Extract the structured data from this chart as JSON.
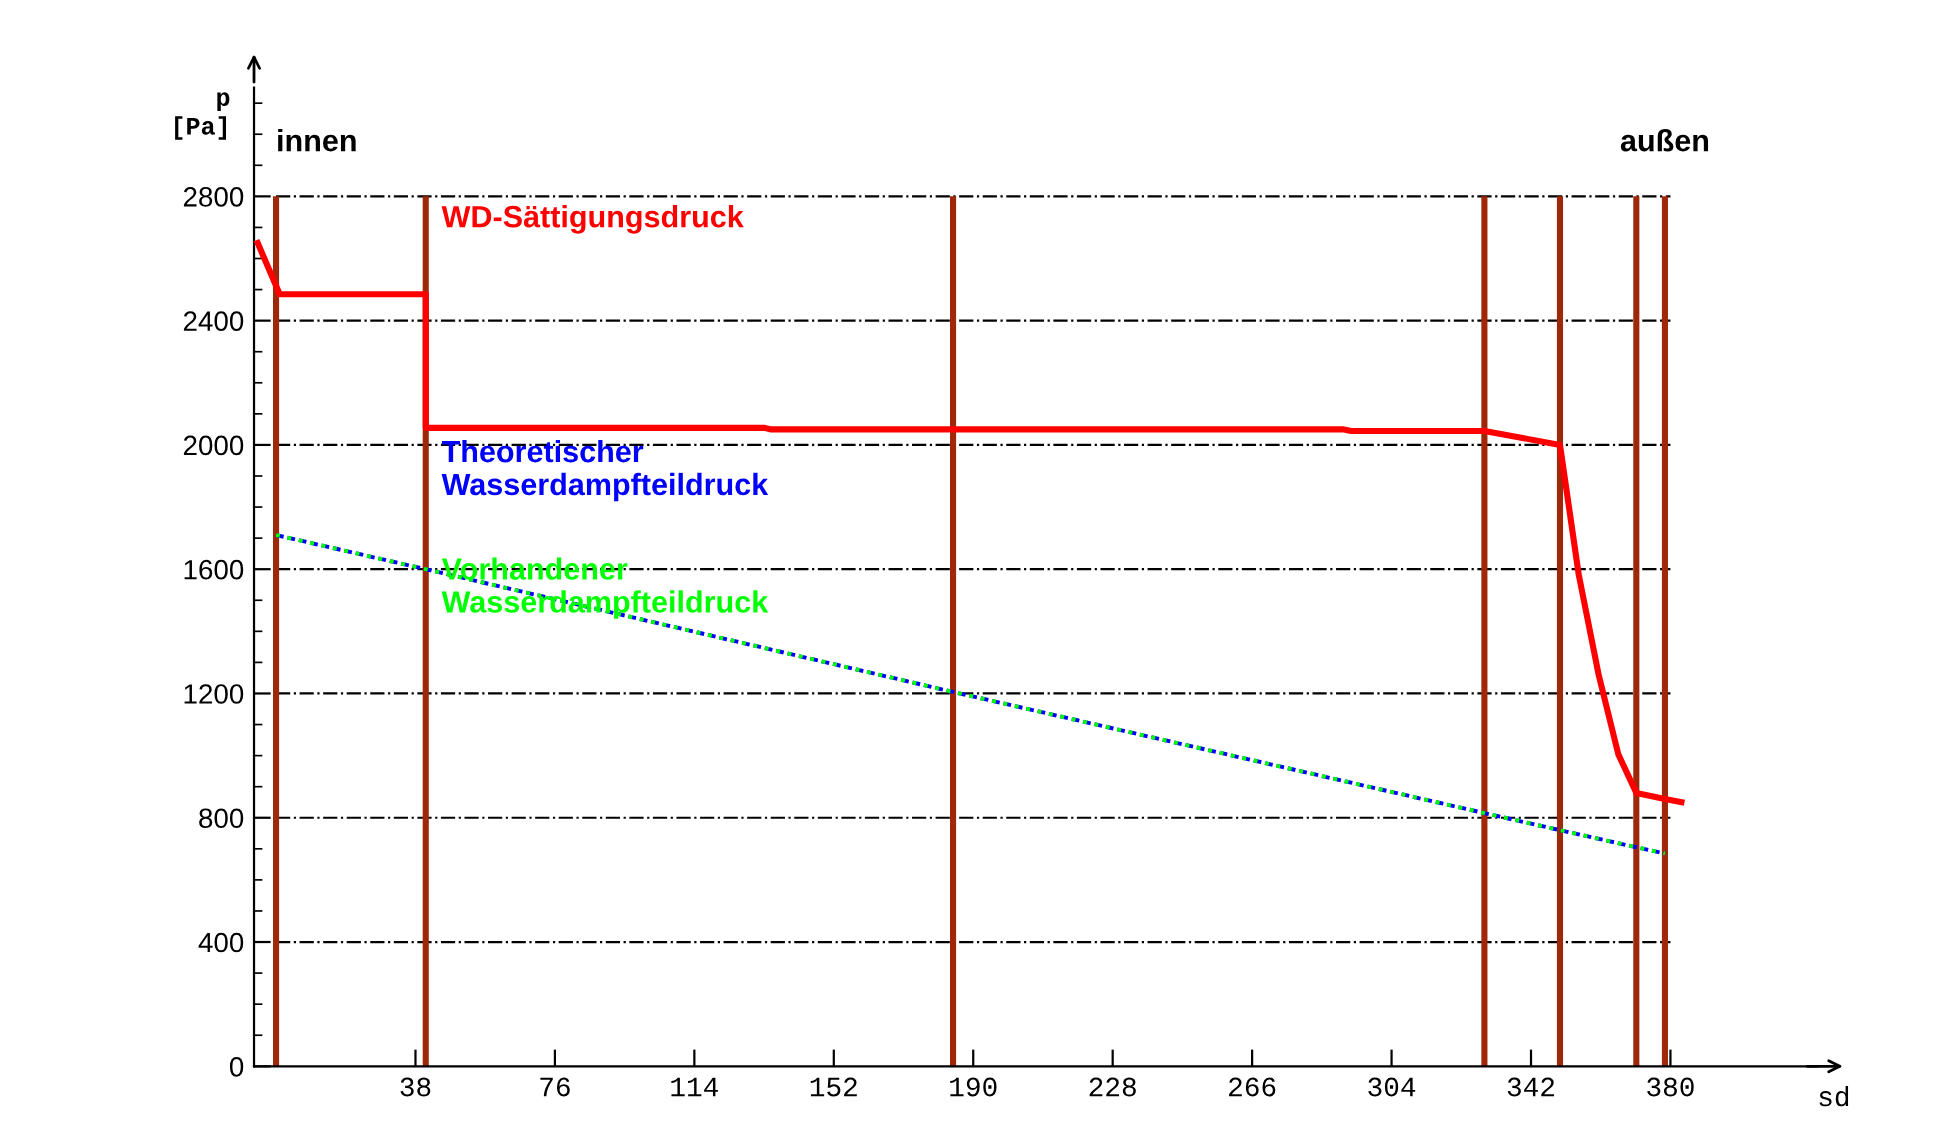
{
  "chart_data": {
    "type": "line",
    "xlabel": "sd",
    "ylabel": "p\n[Pa]",
    "annotations": [
      {
        "text": "innen",
        "x": 0,
        "y": 2800
      },
      {
        "text": "außen",
        "x": 378.5,
        "y": 2800
      }
    ],
    "xlim": [
      -6,
      420
    ],
    "ylim": [
      0,
      3150
    ],
    "xticks": [
      38,
      76,
      114,
      152,
      190,
      228,
      266,
      304,
      342,
      380
    ],
    "yticks": [
      0,
      400,
      800,
      1200,
      1600,
      2000,
      2400,
      2800
    ],
    "grid": "y",
    "series": [
      {
        "name": "WD-Sättigungsdruck",
        "color": "#ff0000",
        "line_style": "solid",
        "x": [
          -5,
          1,
          40.8,
          40.8,
          133,
          135,
          291,
          293,
          329.3,
          349.9,
          355,
          360.4,
          365.8,
          370.7,
          378.5,
          383
        ],
        "values": [
          2650,
          2485,
          2485,
          2055,
          2055,
          2050,
          2050,
          2045,
          2045,
          2000,
          1583,
          1262,
          1004,
          880,
          860,
          850
        ]
      },
      {
        "name": "Theoretischer\nWasserdampfteildruck",
        "color": "#0000ff",
        "line_style": "dashed",
        "x": [
          0,
          40.8,
          184.5,
          329.3,
          349.9,
          370.7,
          378.5
        ],
        "values": [
          1710,
          1600,
          1205,
          815,
          760,
          705,
          685
        ]
      },
      {
        "name": "Vorhandener\nWasserdampfteildruck",
        "color": "#00ff00",
        "line_style": "dotted",
        "x": [
          0,
          40.8,
          184.5,
          329.3,
          349.9,
          370.7,
          378.5
        ],
        "values": [
          1710,
          1600,
          1205,
          815,
          760,
          705,
          685
        ]
      }
    ],
    "ref_lines": [
      {
        "axis": "x",
        "value": 0,
        "color": "#a0280a"
      },
      {
        "axis": "x",
        "value": 40.8,
        "color": "#a0280a"
      },
      {
        "axis": "x",
        "value": 184.5,
        "color": "#a0280a"
      },
      {
        "axis": "x",
        "value": 329.3,
        "color": "#a0280a"
      },
      {
        "axis": "x",
        "value": 349.9,
        "color": "#a0280a"
      },
      {
        "axis": "x",
        "value": 370.7,
        "color": "#a0280a"
      },
      {
        "axis": "x",
        "value": 378.5,
        "color": "#a0280a"
      }
    ]
  }
}
